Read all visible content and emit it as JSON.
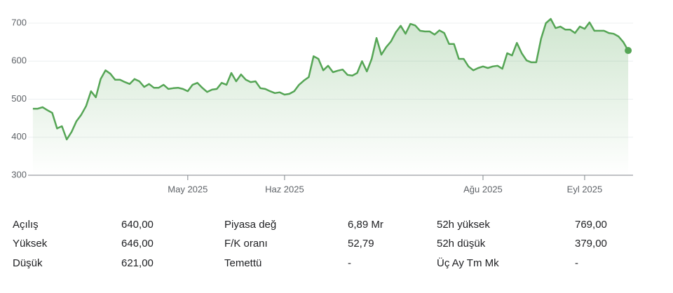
{
  "chart_data": {
    "type": "line",
    "color": "#55a555",
    "values": [
      475,
      475,
      479,
      471,
      464,
      423,
      429,
      394,
      414,
      442,
      459,
      482,
      521,
      505,
      553,
      576,
      567,
      551,
      551,
      545,
      540,
      553,
      547,
      532,
      540,
      530,
      530,
      538,
      527,
      529,
      530,
      527,
      521,
      538,
      543,
      530,
      519,
      525,
      527,
      543,
      538,
      569,
      547,
      565,
      551,
      545,
      547,
      529,
      527,
      521,
      516,
      518,
      512,
      514,
      521,
      538,
      549,
      558,
      613,
      606,
      576,
      588,
      571,
      575,
      578,
      564,
      562,
      569,
      600,
      573,
      606,
      661,
      617,
      637,
      652,
      676,
      693,
      672,
      698,
      694,
      680,
      678,
      678,
      670,
      681,
      674,
      645,
      645,
      606,
      606,
      586,
      576,
      582,
      586,
      582,
      586,
      588,
      580,
      621,
      615,
      648,
      621,
      602,
      597,
      597,
      659,
      700,
      711,
      687,
      691,
      683,
      683,
      674,
      691,
      685,
      702,
      680,
      680,
      680,
      674,
      672,
      665,
      650,
      628
    ],
    "xlim": [
      -1,
      124
    ],
    "xticks": [
      {
        "value": 32,
        "label": "May 2025"
      },
      {
        "value": 52,
        "label": "Haz 2025"
      },
      {
        "value": 93,
        "label": "Ağu 2025"
      },
      {
        "value": 114,
        "label": "Eyl 2025"
      }
    ],
    "ylim": [
      300,
      700
    ],
    "yticks": [
      300,
      400,
      500,
      600,
      700
    ],
    "grid": true
  },
  "stats": [
    [
      {
        "label": "Açılış",
        "value": "640,00"
      },
      {
        "label": "Yüksek",
        "value": "646,00"
      },
      {
        "label": "Düşük",
        "value": "621,00"
      }
    ],
    [
      {
        "label": "Piyasa değ",
        "value": "6,89 Mr"
      },
      {
        "label": "F/K oranı",
        "value": "52,79"
      },
      {
        "label": "Temettü",
        "value": "-"
      }
    ],
    [
      {
        "label": "52h yüksek",
        "value": "769,00"
      },
      {
        "label": "52h düşük",
        "value": "379,00"
      },
      {
        "label": "Üç Ay Tm Mk",
        "value": "-"
      }
    ]
  ]
}
